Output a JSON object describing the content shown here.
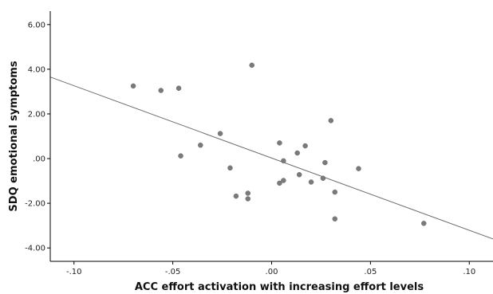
{
  "chart_data": {
    "type": "scatter",
    "title": "",
    "xlabel": "ACC effort activation with increasing effort levels",
    "ylabel": "SDQ emotional symptoms",
    "xlim": [
      -0.112,
      0.112
    ],
    "ylim": [
      -4.6,
      6.6
    ],
    "x_ticks": [
      -0.1,
      -0.05,
      0.0,
      0.05,
      0.1
    ],
    "x_tick_labels": [
      "-.10",
      "-.05",
      ".00",
      ".05",
      ".10"
    ],
    "y_ticks": [
      -4.0,
      -2.0,
      0.0,
      2.0,
      4.0,
      6.0
    ],
    "y_tick_labels": [
      "-4.00",
      "-2.00",
      ".00",
      "2.00",
      "4.00",
      "6.00"
    ],
    "grid": false,
    "points": [
      {
        "x": -0.07,
        "y": 3.25
      },
      {
        "x": -0.056,
        "y": 3.05
      },
      {
        "x": -0.047,
        "y": 3.15
      },
      {
        "x": -0.046,
        "y": 0.12
      },
      {
        "x": -0.036,
        "y": 0.6
      },
      {
        "x": -0.026,
        "y": 1.12
      },
      {
        "x": -0.021,
        "y": -0.42
      },
      {
        "x": -0.018,
        "y": -1.68
      },
      {
        "x": -0.012,
        "y": -1.55
      },
      {
        "x": -0.012,
        "y": -1.8
      },
      {
        "x": -0.01,
        "y": 4.18
      },
      {
        "x": 0.004,
        "y": 0.7
      },
      {
        "x": 0.006,
        "y": -0.1
      },
      {
        "x": 0.004,
        "y": -1.1
      },
      {
        "x": 0.006,
        "y": -0.98
      },
      {
        "x": 0.013,
        "y": 0.25
      },
      {
        "x": 0.014,
        "y": -0.72
      },
      {
        "x": 0.017,
        "y": 0.57
      },
      {
        "x": 0.02,
        "y": -1.05
      },
      {
        "x": 0.026,
        "y": -0.88
      },
      {
        "x": 0.027,
        "y": -0.18
      },
      {
        "x": 0.03,
        "y": 1.7
      },
      {
        "x": 0.032,
        "y": -1.5
      },
      {
        "x": 0.032,
        "y": -2.7
      },
      {
        "x": 0.044,
        "y": -0.45
      },
      {
        "x": 0.077,
        "y": -2.9
      }
    ],
    "fit_line": {
      "x": [
        -0.112,
        0.112
      ],
      "y": [
        3.65,
        -3.6
      ]
    }
  }
}
